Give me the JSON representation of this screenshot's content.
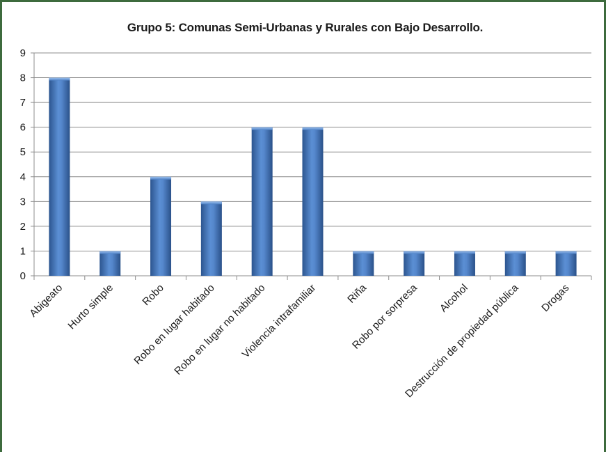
{
  "chart_data": {
    "type": "bar",
    "title": "Grupo 5: Comunas Semi-Urbanas y Rurales con Bajo Desarrollo.",
    "categories": [
      "Abigeato",
      "Hurto simple",
      "Robo",
      "Robo en lugar habitado",
      "Robo en lugar no habitado",
      "Violencia intrafamiliar",
      "Riña",
      "Robo por sorpresa",
      "Alcohol",
      "Destrucción de propiedad pública",
      "Drogas"
    ],
    "values": [
      8,
      1,
      4,
      3,
      6,
      6,
      1,
      1,
      1,
      1,
      1
    ],
    "ylim": [
      0,
      9
    ],
    "yticks": [
      "0",
      "1",
      "2",
      "3",
      "4",
      "5",
      "6",
      "7",
      "8",
      "9"
    ],
    "xlabel": "",
    "ylabel": "",
    "grid": true,
    "legend": "none",
    "bar_color": "#3f6fb3"
  }
}
